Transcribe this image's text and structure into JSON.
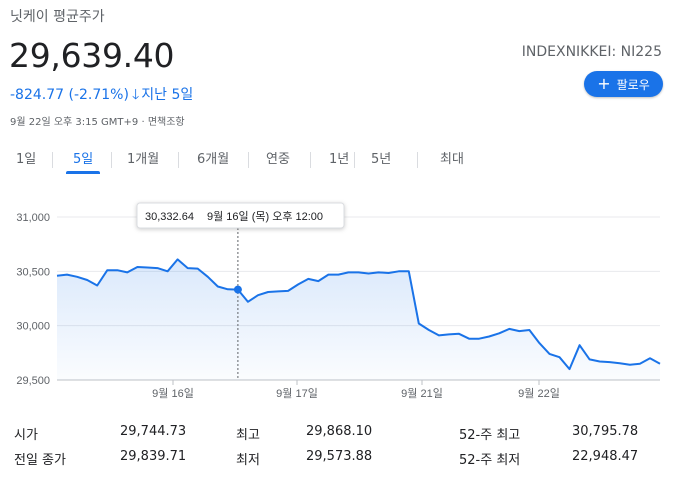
{
  "header": {
    "title": "닛케이 평균주가",
    "price": "29,639.40",
    "ticker": "INDEXNIKKEI: NI225",
    "change": "-824.77 (-2.71%)",
    "change_period": "지난 5일",
    "meta": "9월 22일 오후 3:15 GMT+9 · 면책조항",
    "follow_label": "팔로우"
  },
  "tabs": [
    "1일",
    "5일",
    "1개월",
    "6개월",
    "연중",
    "1년",
    "5년",
    "최대"
  ],
  "active_tab": "5일",
  "tooltip": {
    "value": "30,332.64",
    "date": "9월 16일 (목) 오후 12:00"
  },
  "chart_data": {
    "type": "area",
    "x_ticks": [
      "9월 16일",
      "9월 17일",
      "9월 21일",
      "9월 22일"
    ],
    "y_ticks": [
      "31,000",
      "30,500",
      "30,000",
      "29,500"
    ],
    "ylim": [
      29500,
      31000
    ],
    "grid": true,
    "line_color": "#1a73e8",
    "series": [
      {
        "values": [
          30460,
          30470,
          30450,
          30420,
          30370,
          30510,
          30510,
          30490,
          30540,
          30535,
          30530,
          30500,
          30610,
          30530,
          30525,
          30450,
          30360,
          30335,
          30332,
          30220,
          30280,
          30310,
          30315,
          30320,
          30380,
          30430,
          30410,
          30470,
          30470,
          30490,
          30490,
          30480,
          30490,
          30485,
          30500,
          30500,
          30020,
          29960,
          29910,
          29920,
          29925,
          29880,
          29880,
          29900,
          29930,
          29970,
          29950,
          29960,
          29840,
          29740,
          29710,
          29600,
          29820,
          29690,
          29670,
          29665,
          29655,
          29640,
          29650,
          29700,
          29650
        ]
      }
    ]
  },
  "stats": [
    {
      "label": "시가",
      "value": "29,744.73"
    },
    {
      "label": "최고",
      "value": "29,868.10"
    },
    {
      "label": "52-주 최고",
      "value": "30,795.78"
    },
    {
      "label": "전일 종가",
      "value": "29,839.71"
    },
    {
      "label": "최저",
      "value": "29,573.88"
    },
    {
      "label": "52-주 최저",
      "value": "22,948.47"
    }
  ]
}
